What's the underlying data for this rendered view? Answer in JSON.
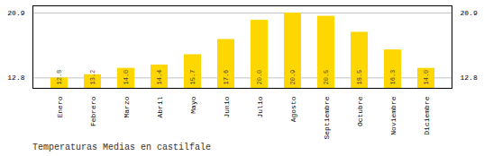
{
  "chart_data": {
    "type": "bar",
    "title": "Temperaturas Medias en castilfale",
    "categories": [
      "Enero",
      "Febrero",
      "Marzo",
      "Abril",
      "Mayo",
      "Junio",
      "Julio",
      "Agosto",
      "Septiembre",
      "Octubre",
      "Noviembre",
      "Diciembre"
    ],
    "values": [
      12.8,
      13.2,
      14.0,
      14.4,
      15.7,
      17.6,
      20.0,
      20.9,
      20.5,
      18.5,
      16.3,
      14.0
    ],
    "value_labels": [
      "12.8",
      "13.2",
      "14.0",
      "14.4",
      "15.7",
      "17.6",
      "20.0",
      "20.9",
      "20.5",
      "18.5",
      "16.3",
      "14.0"
    ],
    "color": "#FFD700",
    "ylim": [
      11.5,
      21.8
    ],
    "yticks": [
      12.8,
      20.9
    ],
    "grid": true,
    "data_labels": true
  }
}
